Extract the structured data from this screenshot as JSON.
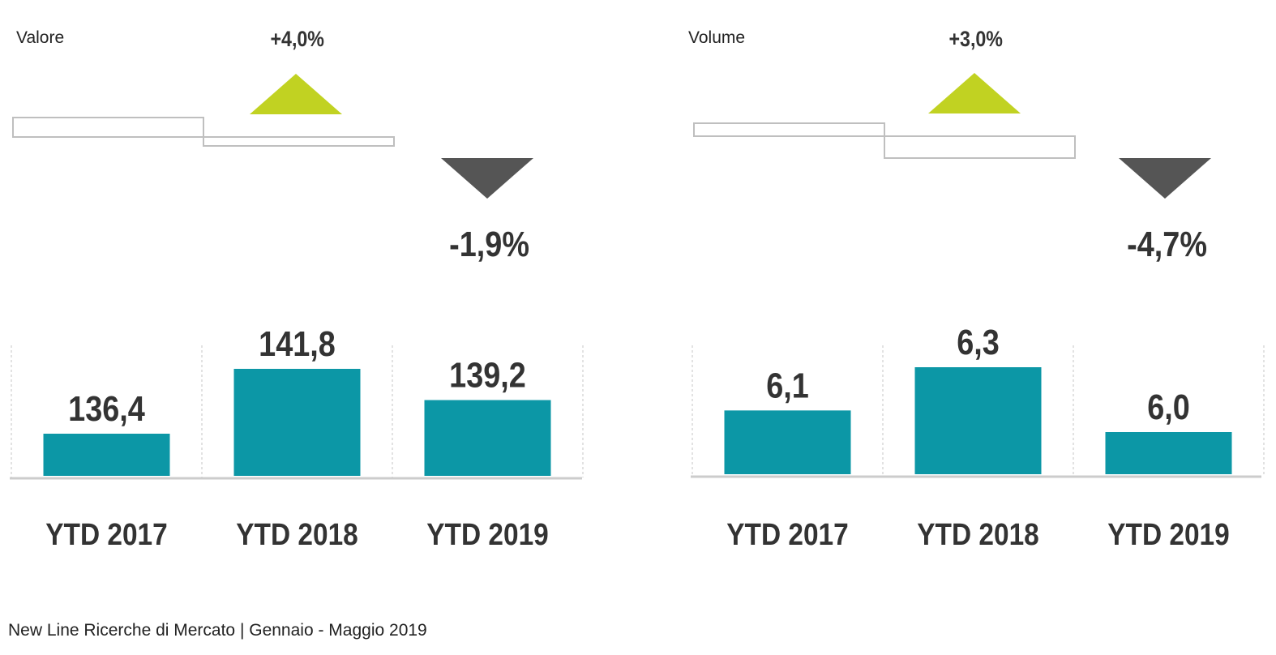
{
  "source": "New Line Ricerche di Mercato | Gennaio - Maggio 2019",
  "colors": {
    "bar": "#0c97a6",
    "up_arrow": "#c1d222",
    "down_arrow": "#555555",
    "text": "#333333",
    "axis": "#cccccc"
  },
  "chart_data": [
    {
      "type": "bar",
      "title": "Valore",
      "categories": [
        "YTD 2017",
        "YTD 2018",
        "YTD 2019"
      ],
      "values": [
        136.4,
        141.8,
        139.2
      ],
      "value_labels": [
        "136,4",
        "141,8",
        "139,2"
      ],
      "changes": [
        {
          "from": "YTD 2017",
          "to": "YTD 2018",
          "label": "+4,0%",
          "direction": "up"
        },
        {
          "from": "YTD 2018",
          "to": "YTD 2019",
          "label": "-1,9%",
          "direction": "down"
        }
      ]
    },
    {
      "type": "bar",
      "title": "Volume",
      "categories": [
        "YTD 2017",
        "YTD 2018",
        "YTD 2019"
      ],
      "values": [
        6.1,
        6.3,
        6.0
      ],
      "value_labels": [
        "6,1",
        "6,3",
        "6,0"
      ],
      "changes": [
        {
          "from": "YTD 2017",
          "to": "YTD 2018",
          "label": "+3,0%",
          "direction": "up"
        },
        {
          "from": "YTD 2018",
          "to": "YTD 2019",
          "label": "-4,7%",
          "direction": "down"
        }
      ]
    }
  ]
}
